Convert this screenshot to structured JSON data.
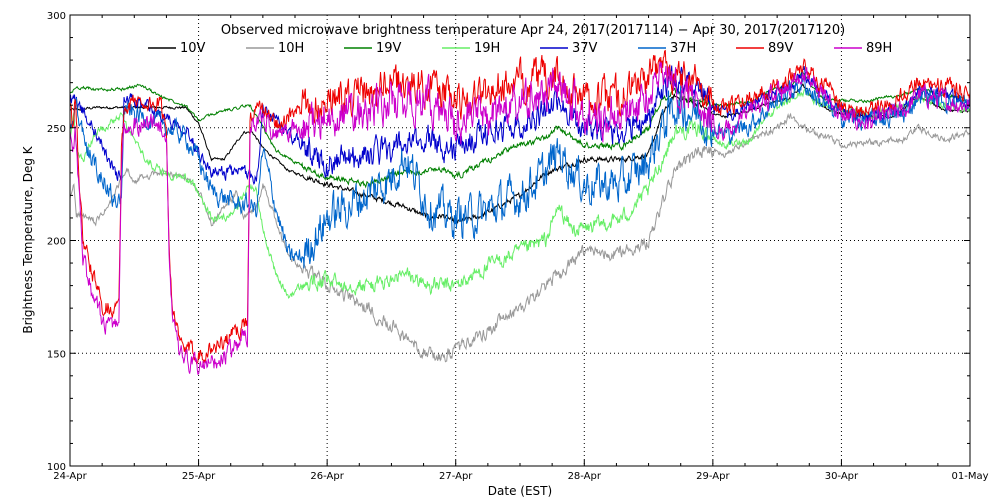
{
  "chart_data": {
    "type": "line",
    "title": "Observed microwave brightness temperature Apr 24, 2017(2017114) − Apr 30, 2017(2017120)",
    "xlabel": "Date (EST)",
    "ylabel": "Brightness Temperature, Deg K",
    "xlim": [
      0,
      7
    ],
    "ylim": [
      100,
      300
    ],
    "grid": true,
    "legend_position": "top",
    "x_ticks": [
      {
        "value": 0,
        "label": "24-Apr"
      },
      {
        "value": 1,
        "label": "25-Apr"
      },
      {
        "value": 2,
        "label": "26-Apr"
      },
      {
        "value": 3,
        "label": "27-Apr"
      },
      {
        "value": 4,
        "label": "28-Apr"
      },
      {
        "value": 5,
        "label": "29-Apr"
      },
      {
        "value": 6,
        "label": "30-Apr"
      },
      {
        "value": 7,
        "label": "01-May"
      }
    ],
    "y_ticks": [
      {
        "value": 100,
        "label": "100"
      },
      {
        "value": 150,
        "label": "150"
      },
      {
        "value": 200,
        "label": "200"
      },
      {
        "value": 250,
        "label": "250"
      },
      {
        "value": 300,
        "label": "300"
      }
    ],
    "series": [
      {
        "name": "10V",
        "color": "#000000",
        "noise": 0.6,
        "x": [
          0,
          0.05,
          0.2,
          0.4,
          0.5,
          0.7,
          0.9,
          1.0,
          1.1,
          1.2,
          1.35,
          1.42,
          1.5,
          1.6,
          1.7,
          2.0,
          2.3,
          2.6,
          2.8,
          2.9,
          3.0,
          3.2,
          3.5,
          3.7,
          4.0,
          4.3,
          4.5,
          4.6,
          4.7,
          4.8,
          4.9,
          5.0,
          5.1,
          5.3,
          5.5,
          5.6,
          5.7,
          5.8,
          5.9,
          6.0,
          6.2,
          6.4,
          6.5,
          6.6,
          6.8,
          7.0
        ],
        "y": [
          258,
          258,
          259,
          259,
          259,
          259,
          259,
          252,
          236,
          236,
          248,
          248,
          241,
          236,
          231,
          225,
          220,
          215,
          210,
          211,
          208,
          211,
          220,
          230,
          236,
          236,
          238,
          255,
          264,
          262,
          260,
          256,
          255,
          258,
          262,
          263,
          269,
          262,
          258,
          256,
          255,
          255,
          259,
          264,
          258,
          257
        ]
      },
      {
        "name": "10H",
        "color": "#999999",
        "noise": 1.5,
        "x": [
          0,
          0.03,
          0.05,
          0.2,
          0.3,
          0.4,
          0.45,
          0.5,
          0.55,
          0.7,
          0.9,
          1.0,
          1.1,
          1.2,
          1.3,
          1.35,
          1.45,
          1.5,
          1.7,
          2.0,
          2.3,
          2.5,
          2.6,
          2.75,
          2.9,
          3.2,
          3.5,
          3.7,
          4.0,
          4.3,
          4.5,
          4.6,
          4.7,
          4.9,
          5.0,
          5.1,
          5.3,
          5.5,
          5.6,
          5.7,
          5.8,
          5.9,
          6.0,
          6.2,
          6.5,
          6.6,
          6.8,
          7.0
        ],
        "y": [
          218,
          225,
          212,
          208,
          215,
          227,
          231,
          225,
          228,
          230,
          228,
          222,
          208,
          214,
          221,
          210,
          214,
          225,
          193,
          180,
          170,
          163,
          157,
          151,
          148,
          158,
          170,
          180,
          195,
          195,
          200,
          215,
          230,
          240,
          240,
          238,
          245,
          250,
          255,
          250,
          248,
          245,
          242,
          243,
          245,
          250,
          245,
          248
        ]
      },
      {
        "name": "19V",
        "color": "#008000",
        "noise": 0.7,
        "x": [
          0,
          0.05,
          0.2,
          0.4,
          0.55,
          0.7,
          0.9,
          1.0,
          1.1,
          1.3,
          1.4,
          1.45,
          1.6,
          1.8,
          2.0,
          2.3,
          2.6,
          2.9,
          3.0,
          3.2,
          3.5,
          3.7,
          3.8,
          4.0,
          4.3,
          4.5,
          4.6,
          4.7,
          4.8,
          4.9,
          5.0,
          5.1,
          5.3,
          5.5,
          5.6,
          5.7,
          5.8,
          5.9,
          6.0,
          6.2,
          6.5,
          6.6,
          6.8,
          7.0
        ],
        "y": [
          265,
          268,
          267,
          267,
          269,
          264,
          260,
          253,
          256,
          259,
          260,
          255,
          240,
          233,
          228,
          225,
          230,
          232,
          228,
          234,
          243,
          245,
          250,
          242,
          242,
          250,
          262,
          266,
          262,
          262,
          260,
          260,
          262,
          268,
          268,
          275,
          266,
          262,
          262,
          262,
          265,
          267,
          265,
          262
        ]
      },
      {
        "name": "19H",
        "color": "#66ee66",
        "noise": 1.8,
        "x": [
          0,
          0.03,
          0.05,
          0.1,
          0.2,
          0.4,
          0.5,
          0.6,
          0.8,
          0.9,
          1.0,
          1.1,
          1.2,
          1.3,
          1.4,
          1.45,
          1.5,
          1.6,
          1.7,
          1.8,
          2.0,
          2.3,
          2.5,
          2.6,
          2.8,
          3.0,
          3.3,
          3.5,
          3.7,
          3.8,
          3.9,
          4.0,
          4.3,
          4.5,
          4.6,
          4.7,
          4.9,
          5.0,
          5.1,
          5.3,
          5.4,
          5.5,
          5.6,
          5.7,
          5.8,
          5.9,
          6.0,
          6.2,
          6.5,
          6.6,
          6.8,
          7.0
        ],
        "y": [
          245,
          255,
          240,
          235,
          248,
          255,
          244,
          235,
          228,
          228,
          222,
          210,
          210,
          215,
          225,
          222,
          205,
          185,
          175,
          180,
          182,
          180,
          182,
          185,
          180,
          180,
          190,
          195,
          200,
          215,
          205,
          205,
          210,
          222,
          235,
          248,
          250,
          245,
          242,
          245,
          255,
          258,
          262,
          266,
          262,
          260,
          258,
          255,
          260,
          264,
          260,
          258
        ]
      },
      {
        "name": "37V",
        "color": "#0000cc",
        "noise": 3.0,
        "x": [
          0,
          0.05,
          0.2,
          0.35,
          0.4,
          0.42,
          0.5,
          0.7,
          0.9,
          1.0,
          1.1,
          1.3,
          1.4,
          1.45,
          1.5,
          1.6,
          1.8,
          2.0,
          2.3,
          2.6,
          2.8,
          3.0,
          3.2,
          3.5,
          3.7,
          3.8,
          4.0,
          4.3,
          4.5,
          4.6,
          4.7,
          4.9,
          5.0,
          5.1,
          5.3,
          5.5,
          5.6,
          5.7,
          5.8,
          5.9,
          6.0,
          6.2,
          6.5,
          6.6,
          6.8,
          7.0
        ],
        "y": [
          262,
          262,
          248,
          230,
          228,
          262,
          262,
          256,
          250,
          240,
          230,
          230,
          230,
          226,
          258,
          253,
          242,
          235,
          238,
          242,
          245,
          240,
          248,
          252,
          257,
          262,
          250,
          248,
          255,
          265,
          272,
          268,
          258,
          255,
          260,
          266,
          268,
          275,
          268,
          262,
          258,
          255,
          258,
          268,
          264,
          262
        ]
      },
      {
        "name": "37H",
        "color": "#0066cc",
        "noise": 4.5,
        "x": [
          0,
          0.05,
          0.15,
          0.35,
          0.4,
          0.42,
          0.5,
          0.7,
          0.9,
          1.0,
          1.1,
          1.3,
          1.4,
          1.45,
          1.5,
          1.6,
          1.7,
          1.8,
          2.0,
          2.3,
          2.5,
          2.6,
          2.8,
          3.0,
          3.2,
          3.5,
          3.7,
          3.8,
          3.9,
          4.0,
          4.3,
          4.5,
          4.6,
          4.7,
          4.9,
          5.0,
          5.1,
          5.3,
          5.5,
          5.6,
          5.7,
          5.8,
          5.9,
          6.0,
          6.2,
          6.5,
          6.6,
          6.8,
          7.0
        ],
        "y": [
          248,
          258,
          238,
          218,
          218,
          258,
          256,
          252,
          246,
          236,
          222,
          216,
          216,
          213,
          240,
          215,
          193,
          192,
          210,
          220,
          228,
          238,
          215,
          210,
          212,
          220,
          230,
          240,
          232,
          225,
          225,
          235,
          250,
          260,
          256,
          250,
          247,
          252,
          262,
          266,
          270,
          264,
          258,
          255,
          253,
          256,
          265,
          262,
          260
        ]
      },
      {
        "name": "89V",
        "color": "#ee0000",
        "noise": 4.0,
        "x": [
          0,
          0.02,
          0.04,
          0.1,
          0.2,
          0.25,
          0.3,
          0.35,
          0.38,
          0.4,
          0.42,
          0.5,
          0.7,
          0.75,
          0.77,
          0.8,
          0.85,
          0.9,
          1.0,
          1.1,
          1.2,
          1.3,
          1.35,
          1.38,
          1.4,
          1.45,
          1.5,
          1.6,
          1.8,
          2.0,
          2.3,
          2.6,
          2.8,
          3.0,
          3.2,
          3.5,
          3.7,
          3.8,
          4.0,
          4.3,
          4.5,
          4.6,
          4.7,
          4.9,
          5.0,
          5.1,
          5.3,
          5.5,
          5.6,
          5.7,
          5.8,
          5.9,
          6.0,
          6.2,
          6.5,
          6.6,
          6.8,
          7.0
        ],
        "y": [
          258,
          250,
          262,
          200,
          180,
          172,
          171,
          170,
          170,
          240,
          258,
          262,
          260,
          250,
          200,
          168,
          155,
          151,
          150,
          152,
          155,
          160,
          163,
          163,
          255,
          258,
          258,
          252,
          258,
          263,
          265,
          270,
          268,
          262,
          265,
          270,
          272,
          272,
          262,
          265,
          272,
          278,
          275,
          270,
          260,
          258,
          264,
          270,
          272,
          278,
          272,
          268,
          260,
          257,
          265,
          272,
          268,
          265
        ]
      },
      {
        "name": "89H",
        "color": "#cc00cc",
        "noise": 4.5,
        "x": [
          0,
          0.02,
          0.04,
          0.1,
          0.2,
          0.25,
          0.3,
          0.35,
          0.38,
          0.4,
          0.42,
          0.5,
          0.7,
          0.75,
          0.77,
          0.8,
          0.85,
          0.9,
          1.0,
          1.1,
          1.2,
          1.3,
          1.35,
          1.38,
          1.4,
          1.45,
          1.5,
          1.6,
          1.8,
          2.0,
          2.3,
          2.6,
          2.8,
          3.0,
          3.2,
          3.5,
          3.7,
          3.8,
          4.0,
          4.3,
          4.5,
          4.6,
          4.7,
          4.9,
          5.0,
          5.1,
          5.3,
          5.5,
          5.6,
          5.7,
          5.8,
          5.9,
          6.0,
          6.2,
          6.5,
          6.6,
          6.8,
          7.0
        ],
        "y": [
          245,
          240,
          250,
          192,
          172,
          165,
          163,
          162,
          162,
          232,
          248,
          252,
          252,
          248,
          195,
          162,
          150,
          146,
          144,
          146,
          148,
          153,
          158,
          158,
          248,
          252,
          255,
          248,
          250,
          255,
          258,
          262,
          262,
          252,
          255,
          260,
          265,
          268,
          255,
          255,
          265,
          275,
          270,
          262,
          252,
          248,
          258,
          265,
          268,
          275,
          268,
          262,
          255,
          252,
          258,
          265,
          262,
          260
        ]
      }
    ]
  }
}
